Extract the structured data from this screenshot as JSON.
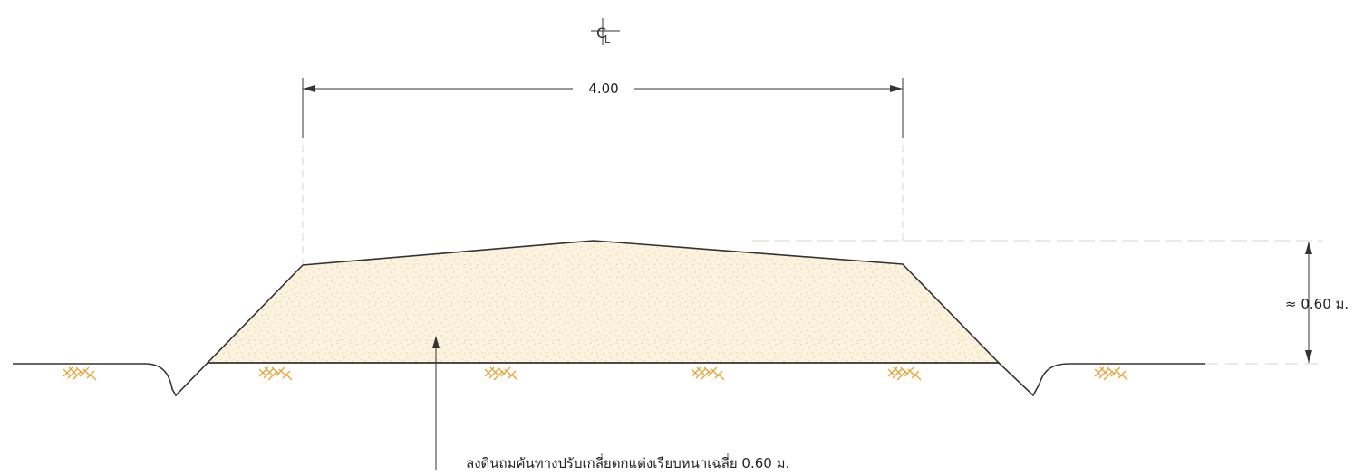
{
  "centerline": {
    "symbol_base": "C",
    "symbol_mark": "L"
  },
  "dimensions": {
    "top_width": "4.00",
    "height": "≈ 0.60 ม."
  },
  "note": {
    "text": "ลงดินถมคันทางปรับเกลี่ยตกแต่งเรียบหนาเฉลี่ย  0.60  ม."
  },
  "colors": {
    "line": "#333333",
    "fill_material": "#fbf3df",
    "fill_dots": "#e9c98a",
    "hatch": "#e8a435"
  },
  "symbols": {
    "ground_hatch_count": 6,
    "hatch_icon": "earth-hatch-icon"
  }
}
